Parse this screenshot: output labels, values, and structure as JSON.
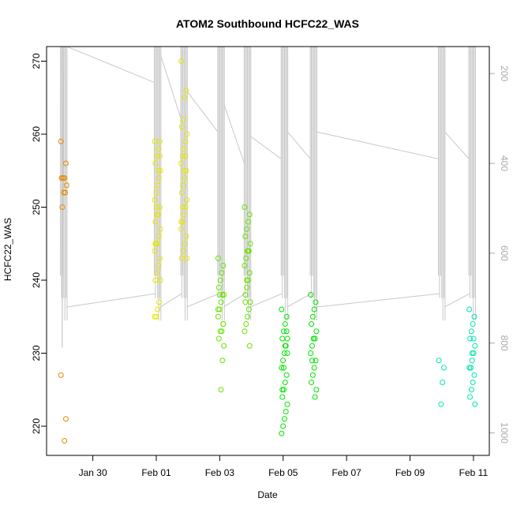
{
  "chart_data": {
    "type": "scatter",
    "title": "ATOM2 Southbound HCFC22_WAS",
    "xlabel": "Date",
    "ylabel": "HCFC22_WAS",
    "x_unit": "date",
    "xlim": [
      "2017-01-28T13:00",
      "2017-02-11T12:00"
    ],
    "ylim": [
      216,
      272
    ],
    "y_ticks": [
      220,
      230,
      240,
      250,
      260,
      270
    ],
    "x_ticks": [
      {
        "date": "2017-01-30",
        "label": "Jan 30"
      },
      {
        "date": "2017-02-01",
        "label": "Feb 01"
      },
      {
        "date": "2017-02-03",
        "label": "Feb 03"
      },
      {
        "date": "2017-02-05",
        "label": "Feb 05"
      },
      {
        "date": "2017-02-07",
        "label": "Feb 07"
      },
      {
        "date": "2017-02-09",
        "label": "Feb 09"
      },
      {
        "date": "2017-02-11",
        "label": "Feb 11"
      }
    ],
    "right_axis": {
      "description": "secondary axis (reversed) used by grey trace line",
      "lim": [
        1050,
        140
      ],
      "ticks": [
        200,
        400,
        600,
        800,
        1000
      ],
      "color": "#aaaaaa"
    },
    "grid": false,
    "groups": [
      {
        "time": "2017-01-29T02:00",
        "color": "#e68a00",
        "values": [
          259,
          256,
          254,
          254,
          254,
          253,
          252,
          252,
          250,
          227,
          221,
          218
        ]
      },
      {
        "time": "2017-02-01T01:00",
        "color": "#e6e600",
        "values": [
          259,
          259,
          258,
          257,
          256,
          255,
          254,
          253,
          252,
          251,
          250,
          249,
          249,
          248,
          247,
          246,
          245,
          245,
          244,
          243,
          242,
          241,
          240,
          240,
          237,
          236,
          235,
          235,
          257,
          255,
          250,
          245
        ]
      },
      {
        "time": "2017-02-01T21:00",
        "color": "#e6e600",
        "values": [
          270,
          266,
          265,
          262,
          261,
          260,
          259,
          258,
          257,
          256,
          255,
          254,
          253,
          252,
          251,
          250,
          249,
          248,
          247,
          246,
          245,
          244,
          243,
          243,
          257,
          255,
          250,
          248
        ]
      },
      {
        "time": "2017-02-03T01:00",
        "color": "#66e600",
        "values": [
          243,
          242,
          241,
          240,
          239,
          238,
          238,
          237,
          236,
          235,
          234,
          233,
          233,
          232,
          231,
          229,
          225,
          238,
          236,
          234
        ]
      },
      {
        "time": "2017-02-03T21:00",
        "color": "#66e600",
        "values": [
          250,
          249,
          248,
          247,
          246,
          245,
          244,
          244,
          243,
          242,
          241,
          240,
          239,
          238,
          237,
          236,
          235,
          234,
          233,
          231,
          244,
          240,
          237
        ]
      },
      {
        "time": "2017-02-05T01:00",
        "color": "#00e600",
        "values": [
          236,
          235,
          234,
          233,
          232,
          232,
          231,
          230,
          229,
          228,
          227,
          226,
          225,
          224,
          223,
          222,
          221,
          220,
          219,
          233,
          231,
          228,
          225,
          230
        ]
      },
      {
        "time": "2017-02-05T23:00",
        "color": "#00e600",
        "values": [
          238,
          237,
          236,
          235,
          234,
          233,
          232,
          232,
          231,
          230,
          229,
          228,
          227,
          226,
          225,
          224,
          232,
          229
        ]
      },
      {
        "time": "2017-02-10T00:00",
        "color": "#00e6b3",
        "values": [
          229,
          228,
          226,
          223
        ]
      },
      {
        "time": "2017-02-10T23:00",
        "color": "#00e6b3",
        "values": [
          236,
          235,
          234,
          233,
          232,
          231,
          230,
          229,
          228,
          228,
          227,
          226,
          225,
          224,
          223,
          232,
          230,
          228
        ]
      }
    ]
  }
}
